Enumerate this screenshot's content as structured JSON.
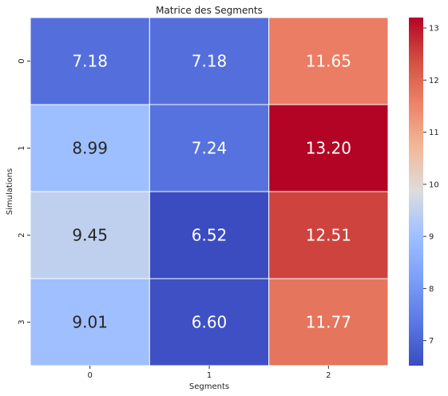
{
  "chart_data": {
    "type": "heatmap",
    "title": "Matrice des Segments",
    "xlabel": "Segments",
    "ylabel": "Simulations",
    "x_categories": [
      "0",
      "1",
      "2"
    ],
    "y_categories": [
      "0",
      "1",
      "2",
      "3"
    ],
    "values": [
      [
        7.18,
        7.18,
        11.65
      ],
      [
        8.99,
        7.24,
        13.2
      ],
      [
        9.45,
        6.52,
        12.51
      ],
      [
        9.01,
        6.6,
        11.77
      ]
    ],
    "value_labels": [
      [
        "7.18",
        "7.18",
        "11.65"
      ],
      [
        "8.99",
        "7.24",
        "13.20"
      ],
      [
        "9.45",
        "6.52",
        "12.51"
      ],
      [
        "9.01",
        "6.60",
        "11.77"
      ]
    ],
    "colormap": "coolwarm",
    "colorbar": {
      "vmin": 6.52,
      "vmax": 13.2,
      "ticks": [
        7,
        8,
        9,
        10,
        11,
        12,
        13
      ],
      "tick_labels": [
        "7",
        "8",
        "9",
        "10",
        "11",
        "12",
        "13"
      ]
    },
    "cell_border_color": "#ffffff"
  }
}
